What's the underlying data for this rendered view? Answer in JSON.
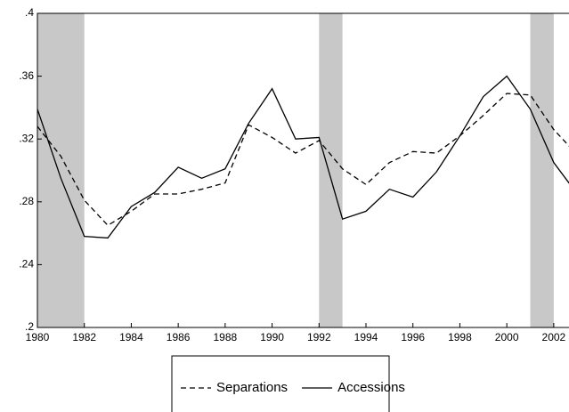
{
  "chart_data": {
    "type": "line",
    "x": [
      1980,
      1981,
      1982,
      1983,
      1984,
      1985,
      1986,
      1987,
      1988,
      1989,
      1990,
      1991,
      1992,
      1993,
      1994,
      1995,
      1996,
      1997,
      1998,
      1999,
      2000,
      2001,
      2002,
      2003
    ],
    "series": [
      {
        "name": "Separations",
        "color": "#000000",
        "style": "dashed",
        "values": [
          0.328,
          0.309,
          0.281,
          0.265,
          0.274,
          0.285,
          0.285,
          0.288,
          0.292,
          0.329,
          0.321,
          0.311,
          0.319,
          0.301,
          0.291,
          0.305,
          0.312,
          0.311,
          0.322,
          0.335,
          0.349,
          0.348,
          0.326,
          0.31
        ]
      },
      {
        "name": "Accessions",
        "color": "#000000",
        "style": "solid",
        "values": [
          0.339,
          0.295,
          0.258,
          0.257,
          0.277,
          0.286,
          0.302,
          0.295,
          0.301,
          0.33,
          0.352,
          0.32,
          0.321,
          0.269,
          0.274,
          0.288,
          0.283,
          0.299,
          0.322,
          0.347,
          0.36,
          0.339,
          0.305,
          0.285
        ]
      }
    ],
    "shaded_periods": [
      [
        1980,
        1982
      ],
      [
        1992,
        1993
      ],
      [
        2001,
        2002
      ]
    ],
    "shade_color": "#c8c8c8",
    "xlim": [
      1980,
      2002.65
    ],
    "xticks": [
      1980,
      1982,
      1984,
      1986,
      1988,
      1990,
      1992,
      1994,
      1996,
      1998,
      2000,
      2002
    ],
    "ylim": [
      0.2,
      0.4
    ],
    "yticks": [
      {
        "value": 0.2,
        "label": ".2"
      },
      {
        "value": 0.24,
        "label": ".24"
      },
      {
        "value": 0.28,
        "label": ".28"
      },
      {
        "value": 0.32,
        "label": ".32"
      },
      {
        "value": 0.36,
        "label": ".36"
      },
      {
        "value": 0.4,
        "label": ".4"
      }
    ]
  }
}
